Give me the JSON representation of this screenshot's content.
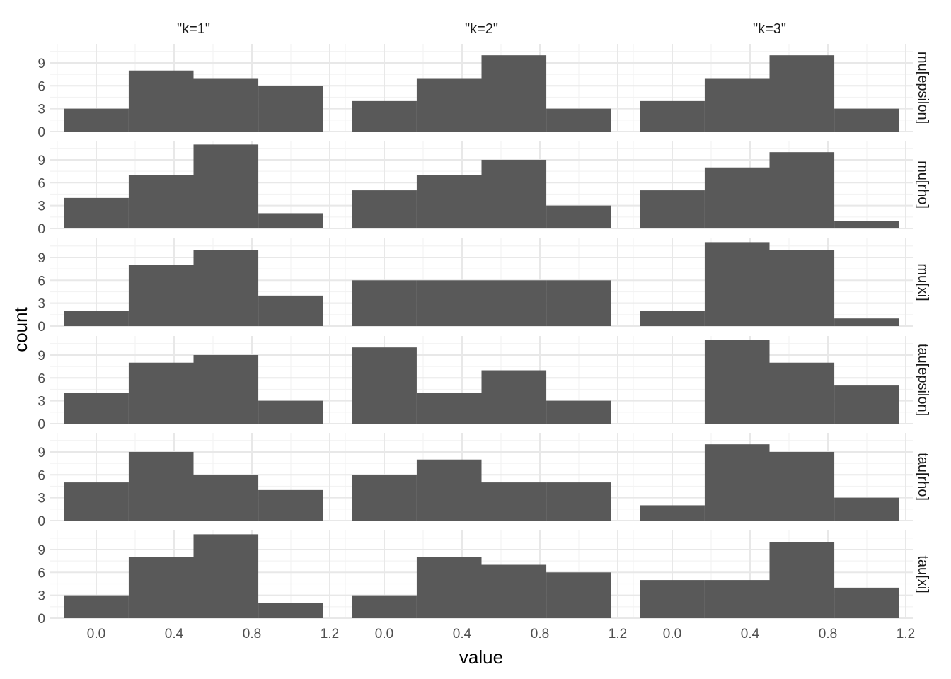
{
  "chart_data": {
    "type": "bar",
    "subtype": "faceted-histogram",
    "xlabel": "value",
    "ylabel": "count",
    "xlim": [
      -0.24,
      1.24
    ],
    "ylim": [
      0,
      11.5
    ],
    "x_ticks": [
      "0.0",
      "0.4",
      "0.8",
      "1.2"
    ],
    "y_ticks": [
      "0",
      "3",
      "6",
      "9"
    ],
    "bin_edges": [
      -0.167,
      0.167,
      0.5,
      0.833,
      1.167
    ],
    "bar_color": "#595959",
    "grid": true,
    "col_labels": [
      "\"k=1\"",
      "\"k=2\"",
      "\"k=3\""
    ],
    "row_labels": [
      "mu[epsilon]",
      "mu[rho]",
      "mu[xi]",
      "tau[epsilon]",
      "tau[rho]",
      "tau[xi]"
    ],
    "counts": [
      [
        [
          3,
          8,
          7,
          6
        ],
        [
          4,
          7,
          10,
          3
        ],
        [
          4,
          7,
          10,
          3
        ]
      ],
      [
        [
          4,
          7,
          11,
          2
        ],
        [
          5,
          7,
          9,
          3
        ],
        [
          5,
          8,
          10,
          1
        ]
      ],
      [
        [
          2,
          8,
          10,
          4
        ],
        [
          6,
          6,
          6,
          6
        ],
        [
          2,
          11,
          10,
          1
        ]
      ],
      [
        [
          4,
          8,
          9,
          3
        ],
        [
          10,
          4,
          7,
          3
        ],
        [
          0,
          11,
          8,
          5
        ]
      ],
      [
        [
          5,
          9,
          6,
          4
        ],
        [
          6,
          8,
          5,
          5
        ],
        [
          2,
          10,
          9,
          3
        ]
      ],
      [
        [
          3,
          8,
          11,
          2
        ],
        [
          3,
          8,
          7,
          6
        ],
        [
          5,
          5,
          10,
          4
        ]
      ]
    ]
  }
}
